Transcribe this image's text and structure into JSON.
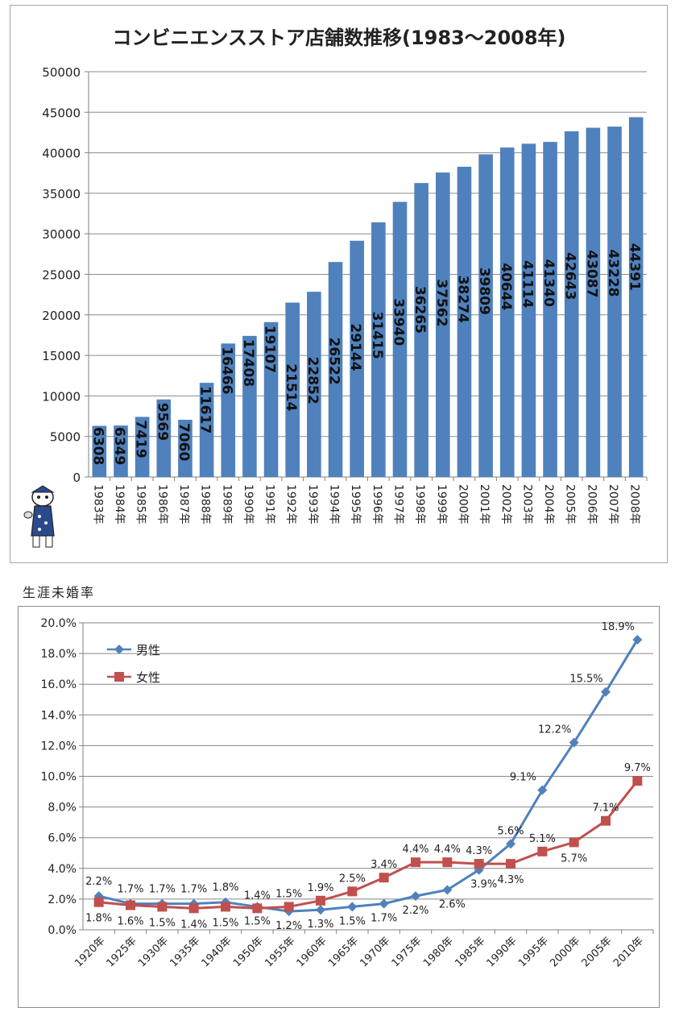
{
  "chart_data": [
    {
      "type": "bar",
      "title": "コンビニエンスストア店舗数推移(1983～2008年)",
      "categories": [
        "1983年",
        "1984年",
        "1985年",
        "1986年",
        "1987年",
        "1988年",
        "1989年",
        "1990年",
        "1991年",
        "1992年",
        "1993年",
        "1994年",
        "1995年",
        "1996年",
        "1997年",
        "1998年",
        "1999年",
        "2000年",
        "2001年",
        "2002年",
        "2003年",
        "2004年",
        "2005年",
        "2006年",
        "2007年",
        "2008年"
      ],
      "values": [
        6308,
        6349,
        7419,
        9569,
        7060,
        11617,
        16466,
        17408,
        19107,
        21514,
        22852,
        26522,
        29144,
        31415,
        33940,
        36265,
        37562,
        38274,
        39809,
        40644,
        41114,
        41340,
        42643,
        43087,
        43228,
        44391
      ],
      "ylim": [
        0,
        50000
      ],
      "yticks": [
        "0",
        "5000",
        "10000",
        "15000",
        "20000",
        "25000",
        "30000",
        "35000",
        "40000",
        "45000",
        "50000"
      ],
      "grid": true,
      "bar_color": "#4f81bd",
      "legend": "none"
    },
    {
      "type": "line",
      "title": "生涯未婚率",
      "categories": [
        "1920年",
        "1925年",
        "1930年",
        "1935年",
        "1940年",
        "1950年",
        "1955年",
        "1960年",
        "1965年",
        "1970年",
        "1975年",
        "1980年",
        "1985年",
        "1990年",
        "1995年",
        "2000年",
        "2005年",
        "2010年"
      ],
      "ylim": [
        0,
        20
      ],
      "yticks": [
        "0.0%",
        "2.0%",
        "4.0%",
        "6.0%",
        "8.0%",
        "10.0%",
        "12.0%",
        "14.0%",
        "16.0%",
        "18.0%",
        "20.0%"
      ],
      "grid": true,
      "legend": "top-left",
      "series": [
        {
          "name": "男性",
          "color": "#4f81bd",
          "marker": "diamond",
          "values": [
            2.2,
            1.7,
            1.7,
            1.7,
            1.8,
            1.5,
            1.2,
            1.3,
            1.5,
            1.7,
            2.2,
            2.6,
            3.9,
            5.6,
            9.1,
            12.2,
            15.5,
            18.9
          ],
          "labels": [
            "2.2%",
            "1.7%",
            "1.7%",
            "1.7%",
            "1.8%",
            "1.5%",
            "1.2%",
            "1.3%",
            "1.5%",
            "1.7%",
            "2.2%",
            "2.6%",
            "3.9%",
            "5.6%",
            "9.1%",
            "12.2%",
            "15.5%",
            "18.9%"
          ]
        },
        {
          "name": "女性",
          "color": "#c0504d",
          "marker": "square",
          "values": [
            1.8,
            1.6,
            1.5,
            1.4,
            1.5,
            1.4,
            1.5,
            1.9,
            2.5,
            3.4,
            4.4,
            4.4,
            4.3,
            4.3,
            5.1,
            5.7,
            7.1,
            9.7
          ],
          "labels": [
            "1.8%",
            "1.6%",
            "1.5%",
            "1.4%",
            "1.5%",
            "1.4%",
            "1.5%",
            "1.9%",
            "2.5%",
            "3.4%",
            "4.4%",
            "4.4%",
            "4.3%",
            "4.3%",
            "5.1%",
            "5.7%",
            "7.1%",
            "9.7%"
          ]
        }
      ]
    }
  ]
}
